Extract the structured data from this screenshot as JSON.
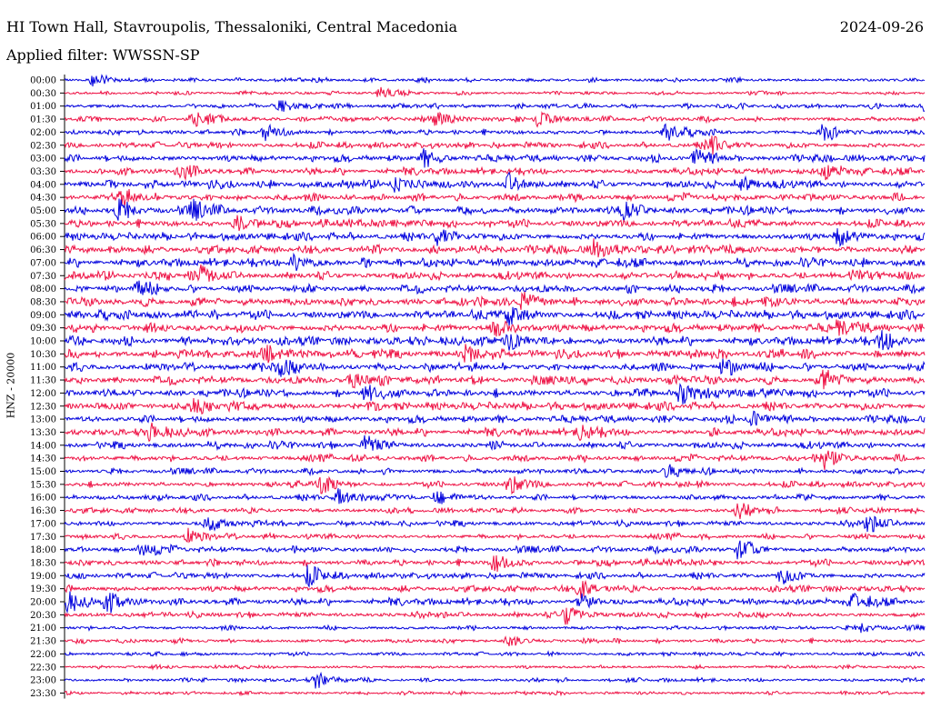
{
  "header": {
    "title": "HI Town Hall, Stavroupolis, Thessaloniki, Central Macedonia",
    "date": "2024-09-26",
    "filter": "Applied filter: WWSSN-SP"
  },
  "colors": {
    "even_rows": "#0000dd",
    "odd_rows": "#ee1144",
    "axis": "#000000"
  },
  "chart_data": {
    "type": "line",
    "ylabel": "HNZ - 20000",
    "row_labels": [
      "00:00",
      "00:30",
      "01:00",
      "01:30",
      "02:00",
      "02:30",
      "03:00",
      "03:30",
      "04:00",
      "04:30",
      "05:00",
      "05:30",
      "06:00",
      "06:30",
      "07:00",
      "07:30",
      "08:00",
      "08:30",
      "09:00",
      "09:30",
      "10:00",
      "10:30",
      "11:00",
      "11:30",
      "12:00",
      "12:30",
      "13:00",
      "13:30",
      "14:00",
      "14:30",
      "15:00",
      "15:30",
      "16:00",
      "16:30",
      "17:00",
      "17:30",
      "18:00",
      "18:30",
      "19:00",
      "19:30",
      "20:00",
      "20:30",
      "21:00",
      "21:30",
      "22:00",
      "22:30",
      "23:00",
      "23:30"
    ],
    "row_interval_minutes": 30,
    "series_colors": [
      "blue",
      "red"
    ],
    "activity": [
      0.25,
      0.15,
      0.35,
      0.45,
      0.45,
      0.55,
      0.7,
      0.65,
      0.8,
      0.8,
      0.85,
      0.8,
      0.8,
      0.9,
      0.9,
      0.85,
      0.85,
      0.95,
      0.95,
      0.95,
      0.95,
      0.9,
      0.9,
      0.9,
      0.85,
      0.85,
      0.75,
      0.75,
      0.7,
      0.65,
      0.5,
      0.5,
      0.5,
      0.45,
      0.5,
      0.45,
      0.6,
      0.6,
      0.55,
      0.6,
      0.65,
      0.5,
      0.3,
      0.3,
      0.15,
      0.15,
      0.2,
      0.1
    ],
    "events": [
      {
        "row": 0,
        "time": 1.0,
        "amp": 0.6
      },
      {
        "row": 1,
        "time": 11.0,
        "amp": 0.6
      },
      {
        "row": 2,
        "time": 7.5,
        "amp": 0.7
      },
      {
        "row": 2,
        "time": 29.9,
        "amp": 0.9
      },
      {
        "row": 3,
        "time": 4.5,
        "amp": 0.9
      },
      {
        "row": 3,
        "time": 13.0,
        "amp": 1.0
      },
      {
        "row": 3,
        "time": 16.5,
        "amp": 0.8
      },
      {
        "row": 4,
        "time": 7.0,
        "amp": 0.7
      },
      {
        "row": 4,
        "time": 21.0,
        "amp": 0.8
      },
      {
        "row": 4,
        "time": 26.5,
        "amp": 0.8
      },
      {
        "row": 5,
        "time": 22.5,
        "amp": 1.0
      },
      {
        "row": 6,
        "time": 12.5,
        "amp": 0.9
      },
      {
        "row": 6,
        "time": 22.0,
        "amp": 1.0
      },
      {
        "row": 7,
        "time": 4.0,
        "amp": 0.8
      },
      {
        "row": 7,
        "time": 26.5,
        "amp": 0.8
      },
      {
        "row": 8,
        "time": 11.5,
        "amp": 0.8
      },
      {
        "row": 8,
        "time": 15.5,
        "amp": 0.9
      },
      {
        "row": 8,
        "time": 23.5,
        "amp": 0.9
      },
      {
        "row": 9,
        "time": 1.9,
        "amp": 0.9
      },
      {
        "row": 10,
        "time": 1.9,
        "amp": 1.0
      },
      {
        "row": 10,
        "time": 4.5,
        "amp": 0.9
      },
      {
        "row": 10,
        "time": 19.5,
        "amp": 1.0
      },
      {
        "row": 11,
        "time": 6.0,
        "amp": 0.8
      },
      {
        "row": 12,
        "time": 13.0,
        "amp": 0.9
      },
      {
        "row": 12,
        "time": 27.0,
        "amp": 1.0
      },
      {
        "row": 13,
        "time": 18.5,
        "amp": 1.0
      },
      {
        "row": 14,
        "time": 8.0,
        "amp": 0.9
      },
      {
        "row": 15,
        "time": 4.8,
        "amp": 0.9
      },
      {
        "row": 15,
        "time": 27.5,
        "amp": 0.8
      },
      {
        "row": 16,
        "time": 2.5,
        "amp": 0.9
      },
      {
        "row": 17,
        "time": 16.0,
        "amp": 1.0
      },
      {
        "row": 18,
        "time": 15.5,
        "amp": 1.0
      },
      {
        "row": 19,
        "time": 15.0,
        "amp": 0.9
      },
      {
        "row": 19,
        "time": 27.0,
        "amp": 0.9
      },
      {
        "row": 20,
        "time": 15.5,
        "amp": 1.0
      },
      {
        "row": 20,
        "time": 28.5,
        "amp": 0.9
      },
      {
        "row": 21,
        "time": 7.0,
        "amp": 1.0
      },
      {
        "row": 21,
        "time": 14.0,
        "amp": 0.9
      },
      {
        "row": 22,
        "time": 7.5,
        "amp": 1.0
      },
      {
        "row": 22,
        "time": 23.0,
        "amp": 1.0
      },
      {
        "row": 23,
        "time": 10.0,
        "amp": 1.0
      },
      {
        "row": 23,
        "time": 26.5,
        "amp": 0.9
      },
      {
        "row": 24,
        "time": 10.5,
        "amp": 0.9
      },
      {
        "row": 24,
        "time": 21.5,
        "amp": 0.9
      },
      {
        "row": 25,
        "time": 4.5,
        "amp": 0.8
      },
      {
        "row": 26,
        "time": 24.0,
        "amp": 0.8
      },
      {
        "row": 27,
        "time": 3.0,
        "amp": 0.8
      },
      {
        "row": 27,
        "time": 18.0,
        "amp": 0.8
      },
      {
        "row": 28,
        "time": 10.5,
        "amp": 0.9
      },
      {
        "row": 29,
        "time": 26.5,
        "amp": 1.0
      },
      {
        "row": 30,
        "time": 21.0,
        "amp": 0.8
      },
      {
        "row": 31,
        "time": 9.0,
        "amp": 0.9
      },
      {
        "row": 31,
        "time": 15.5,
        "amp": 0.9
      },
      {
        "row": 32,
        "time": 9.5,
        "amp": 0.9
      },
      {
        "row": 32,
        "time": 13.0,
        "amp": 0.9
      },
      {
        "row": 33,
        "time": 23.5,
        "amp": 0.8
      },
      {
        "row": 34,
        "time": 5.0,
        "amp": 0.9
      },
      {
        "row": 34,
        "time": 28.0,
        "amp": 0.9
      },
      {
        "row": 35,
        "time": 4.3,
        "amp": 0.7
      },
      {
        "row": 36,
        "time": 2.7,
        "amp": 0.8
      },
      {
        "row": 36,
        "time": 23.5,
        "amp": 1.0
      },
      {
        "row": 37,
        "time": 15.0,
        "amp": 1.0
      },
      {
        "row": 38,
        "time": 8.5,
        "amp": 0.9
      },
      {
        "row": 38,
        "time": 25.0,
        "amp": 0.8
      },
      {
        "row": 39,
        "time": 18.0,
        "amp": 0.9
      },
      {
        "row": 40,
        "time": 0.1,
        "amp": 1.0
      },
      {
        "row": 40,
        "time": 1.5,
        "amp": 1.0
      },
      {
        "row": 40,
        "time": 18.0,
        "amp": 0.8
      },
      {
        "row": 40,
        "time": 27.5,
        "amp": 0.8
      },
      {
        "row": 41,
        "time": 17.5,
        "amp": 1.0
      },
      {
        "row": 42,
        "time": 27.8,
        "amp": 0.5
      },
      {
        "row": 43,
        "time": 15.5,
        "amp": 0.6
      },
      {
        "row": 46,
        "time": 8.8,
        "amp": 0.9
      }
    ]
  }
}
